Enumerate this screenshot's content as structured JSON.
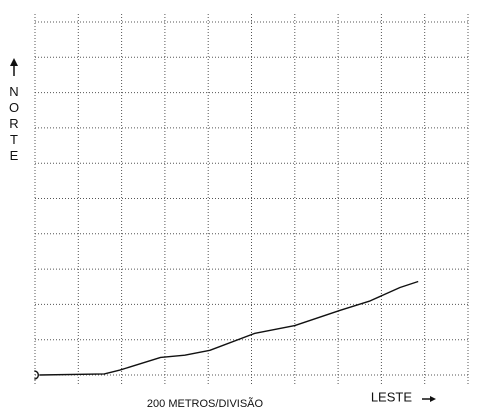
{
  "chart_data": {
    "type": "line",
    "y_label": "NORTE",
    "x_label": "200 METROS/DIVISÃO",
    "east_label": "LESTE",
    "x": [
      0.1,
      1.6,
      1.96,
      2.9,
      3.46,
      4.04,
      5.08,
      6.0,
      7.04,
      7.74,
      8.43,
      8.85
    ],
    "values": [
      0,
      0.03,
      0.14,
      0.5,
      0.56,
      0.7,
      1.18,
      1.4,
      1.83,
      2.1,
      2.48,
      2.65
    ],
    "color": "#111111",
    "xlim": [
      0,
      10
    ],
    "ylim": [
      0,
      10
    ],
    "xticks": [
      0,
      1,
      2,
      3,
      4,
      5,
      6,
      7,
      8,
      9,
      10
    ],
    "yticks": [
      0,
      1,
      2,
      3,
      4,
      5,
      6,
      7,
      8,
      9,
      10
    ],
    "grid": true
  }
}
